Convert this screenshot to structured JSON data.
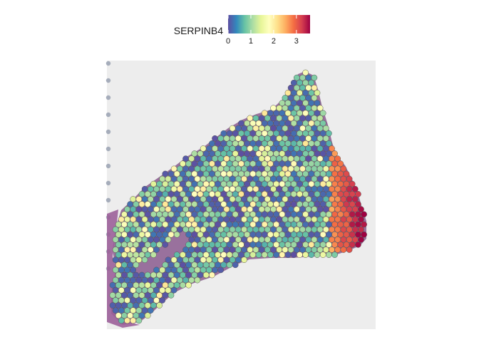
{
  "chart_data": {
    "type": "scatter",
    "title": "",
    "xlabel": "",
    "ylabel": "",
    "grid": false,
    "legend": {
      "title": "SERPINB4",
      "placement": "top",
      "ticks": [
        "0",
        "1",
        "2",
        "3"
      ],
      "tick_values": [
        0,
        1,
        2,
        3
      ],
      "range": [
        0,
        3.6
      ],
      "colormap": [
        "#5e4fa2",
        "#3288bd",
        "#66c2a5",
        "#abdda4",
        "#e6f598",
        "#ffffbf",
        "#fee08b",
        "#fdae61",
        "#f46d43",
        "#d53e4f",
        "#9e0142"
      ]
    },
    "point_color_counts": {
      "0": 190,
      "1": 260,
      "2": 90,
      "3": 25
    }
  }
}
